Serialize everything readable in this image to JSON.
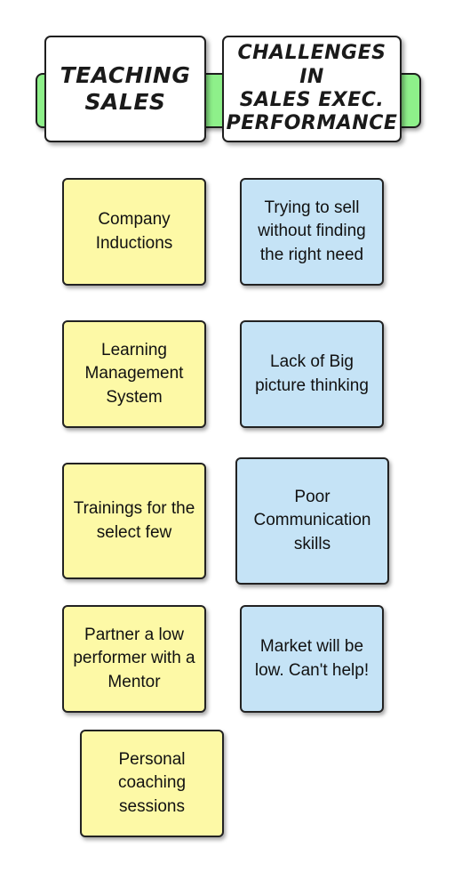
{
  "headers": {
    "teaching_sales": "TEACHING\nSALES",
    "challenges": "CHALLENGES IN\nSALES  EXEC.\nPERFORMANCE"
  },
  "teaching_notes": [
    "Company Inductions",
    "Learning Management System",
    "Trainings for the select few",
    "Partner a low performer with a Mentor",
    "Personal coaching sessions"
  ],
  "challenge_notes": [
    "Trying to sell without finding the right need",
    "Lack of Big picture thinking",
    "Poor Communication skills",
    "Market will be low. Can't help!"
  ],
  "colors": {
    "header_bar": "#8ef08a",
    "teaching_note": "#fdf9a6",
    "challenge_note": "#c5e3f6"
  }
}
